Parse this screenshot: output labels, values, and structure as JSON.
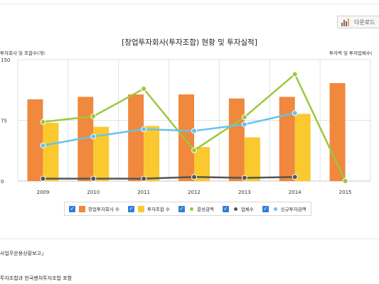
{
  "download": {
    "label": "다운로드"
  },
  "chart_data": {
    "type": "bar",
    "title": "[창업투자회사(투자조합) 현황 및 투자실적]",
    "left_axis_title": "투자회사 및 조합수(개)",
    "right_axis_title": "투자액 및 투자업체수(",
    "categories": [
      "2009",
      "2010",
      "2011",
      "2012",
      "2013",
      "2014",
      "2015"
    ],
    "ylim": [
      0,
      150
    ],
    "yticks": [
      "0",
      "75",
      "150"
    ],
    "grid": true,
    "legend_position": "bottom",
    "series": [
      {
        "name": "창업투자회사 수",
        "kind": "bar",
        "color": "#F0883E",
        "values": [
          101,
          104,
          107,
          107,
          102,
          104,
          121
        ]
      },
      {
        "name": "투자조합 수",
        "kind": "bar",
        "color": "#FAC92F",
        "values": [
          72,
          67,
          68,
          42,
          54,
          83,
          null
        ]
      },
      {
        "name": "결성금액",
        "kind": "line",
        "color": "#9CC83C",
        "values": [
          73,
          80,
          114,
          38,
          79,
          132,
          0
        ]
      },
      {
        "name": "업체수",
        "kind": "line",
        "color": "#555555",
        "values": [
          3,
          3,
          3,
          5,
          4,
          5,
          null
        ]
      },
      {
        "name": "신규투자금액",
        "kind": "line",
        "color": "#65C2EE",
        "values": [
          44,
          55,
          64,
          62,
          70,
          84,
          null
        ]
      }
    ]
  },
  "footnotes": [
    "사업무운용상황보고」",
    "투자조합과 한국벤처투자조합 포함"
  ]
}
